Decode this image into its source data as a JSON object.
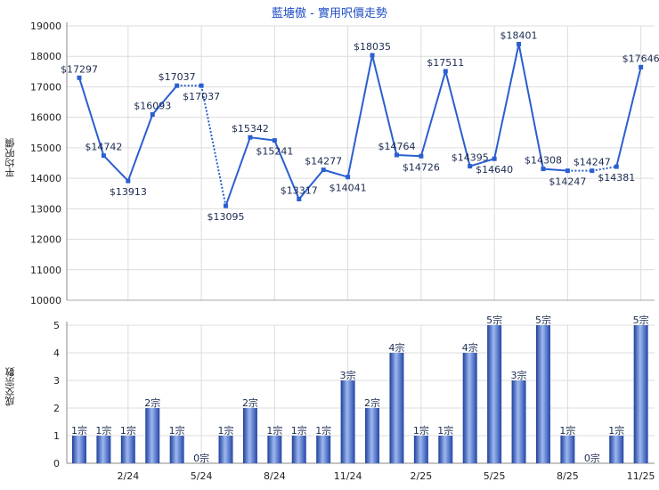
{
  "chart_data": [
    {
      "type": "line",
      "title": "藍塘傲 - 實用呎價走勢",
      "ylabel": "平均呎價",
      "ylim": [
        10000,
        19000
      ],
      "yticks": [
        10000,
        11000,
        12000,
        13000,
        14000,
        15000,
        16000,
        17000,
        18000,
        19000
      ],
      "grid": true,
      "x": [
        "12/23",
        "1/24",
        "2/24",
        "3/24",
        "4/24",
        "5/24",
        "6/24",
        "7/24",
        "8/24",
        "9/24",
        "10/24",
        "11/24",
        "12/24",
        "1/25",
        "2/25",
        "3/25",
        "4/25",
        "5/25",
        "6/25",
        "7/25",
        "8/25",
        "9/25",
        "10/25",
        "11/25"
      ],
      "values": [
        17297,
        14742,
        13913,
        16093,
        17037,
        17037,
        13095,
        15342,
        15241,
        13317,
        14277,
        14041,
        18035,
        14764,
        14726,
        17511,
        14395,
        14640,
        18401,
        14308,
        14247,
        14247,
        14381,
        17646
      ],
      "labels": [
        "$17297",
        "$14742",
        "$13913",
        "$16093",
        "$17037",
        "$17037",
        "$13095",
        "$15342",
        "$15241",
        "$13317",
        "$14277",
        "$14041",
        "$18035",
        "$14764",
        "$14726",
        "$17511",
        "$14395",
        "$14640",
        "$18401",
        "$14308",
        "$14247",
        "$14247",
        "$14381",
        "$17646"
      ],
      "color": "#2a5fd0"
    },
    {
      "type": "bar",
      "ylabel": "成交宗數",
      "ylim": [
        0,
        5
      ],
      "yticks": [
        0,
        1,
        2,
        3,
        4,
        5
      ],
      "grid": true,
      "values": [
        1,
        1,
        1,
        2,
        1,
        0,
        1,
        2,
        1,
        1,
        1,
        3,
        2,
        4,
        1,
        1,
        4,
        5,
        3,
        5,
        1,
        0,
        1,
        5
      ],
      "labels": [
        "1宗",
        "1宗",
        "1宗",
        "2宗",
        "1宗",
        "0宗",
        "1宗",
        "2宗",
        "1宗",
        "1宗",
        "1宗",
        "3宗",
        "2宗",
        "4宗",
        "1宗",
        "1宗",
        "4宗",
        "5宗",
        "3宗",
        "5宗",
        "1宗",
        "0宗",
        "1宗",
        "5宗"
      ],
      "xtick_labels": [
        "2/24",
        "5/24",
        "8/24",
        "11/24",
        "2/25",
        "5/25",
        "8/25",
        "11/25"
      ],
      "xtick_index": [
        2,
        5,
        8,
        11,
        14,
        17,
        20,
        23
      ],
      "color": "#3a62c8"
    }
  ]
}
